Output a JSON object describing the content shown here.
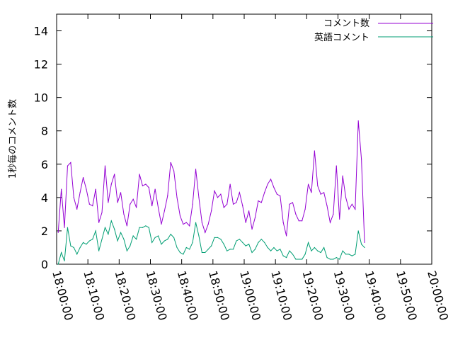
{
  "chart_data": {
    "type": "line",
    "title": "",
    "xlabel": "",
    "ylabel": "1秒毎のコメント数",
    "ylim": [
      0,
      15
    ],
    "yticks": [
      "0",
      "2",
      "4",
      "6",
      "8",
      "10",
      "12",
      "14"
    ],
    "xlim": [
      "18:00:00",
      "20:00:00"
    ],
    "xticks": [
      "18:00:00",
      "18:10:00",
      "18:20:00",
      "18:30:00",
      "18:40:00",
      "18:50:00",
      "19:00:00",
      "19:10:00",
      "19:20:00",
      "19:30:00",
      "19:40:00",
      "19:50:00",
      "20:00:00"
    ],
    "grid": false,
    "legend_position": "top-right",
    "series": [
      {
        "name": "コメント数",
        "color": "#9400d3",
        "points": [
          [
            "18:00:30",
            1.9
          ],
          [
            "18:01:30",
            4.5
          ],
          [
            "18:02:30",
            2.2
          ],
          [
            "18:03:30",
            5.9
          ],
          [
            "18:04:30",
            6.1
          ],
          [
            "18:05:30",
            4.0
          ],
          [
            "18:06:30",
            3.3
          ],
          [
            "18:07:30",
            4.3
          ],
          [
            "18:08:30",
            5.2
          ],
          [
            "18:09:30",
            4.5
          ],
          [
            "18:10:30",
            3.6
          ],
          [
            "18:11:30",
            3.5
          ],
          [
            "18:12:30",
            4.5
          ],
          [
            "18:13:30",
            2.5
          ],
          [
            "18:14:30",
            3.1
          ],
          [
            "18:15:30",
            5.9
          ],
          [
            "18:16:30",
            3.7
          ],
          [
            "18:17:30",
            4.8
          ],
          [
            "18:18:30",
            5.4
          ],
          [
            "18:19:30",
            3.7
          ],
          [
            "18:20:30",
            4.3
          ],
          [
            "18:21:30",
            3.0
          ],
          [
            "18:22:30",
            2.3
          ],
          [
            "18:23:30",
            3.6
          ],
          [
            "18:24:30",
            3.9
          ],
          [
            "18:25:30",
            3.4
          ],
          [
            "18:26:30",
            5.4
          ],
          [
            "18:27:30",
            4.7
          ],
          [
            "18:28:30",
            4.8
          ],
          [
            "18:29:30",
            4.6
          ],
          [
            "18:30:30",
            3.5
          ],
          [
            "18:31:30",
            4.5
          ],
          [
            "18:32:30",
            3.4
          ],
          [
            "18:33:30",
            2.4
          ],
          [
            "18:34:30",
            3.2
          ],
          [
            "18:35:30",
            4.1
          ],
          [
            "18:36:30",
            6.1
          ],
          [
            "18:37:30",
            5.6
          ],
          [
            "18:38:30",
            4.0
          ],
          [
            "18:39:30",
            2.9
          ],
          [
            "18:40:30",
            2.4
          ],
          [
            "18:41:30",
            2.5
          ],
          [
            "18:42:30",
            2.3
          ],
          [
            "18:43:30",
            3.6
          ],
          [
            "18:44:30",
            5.7
          ],
          [
            "18:45:30",
            4.0
          ],
          [
            "18:46:30",
            2.5
          ],
          [
            "18:47:30",
            1.9
          ],
          [
            "18:48:30",
            2.4
          ],
          [
            "18:49:30",
            3.2
          ],
          [
            "18:50:30",
            4.4
          ],
          [
            "18:51:30",
            4.0
          ],
          [
            "18:52:30",
            4.2
          ],
          [
            "18:53:30",
            3.4
          ],
          [
            "18:54:30",
            3.6
          ],
          [
            "18:55:30",
            4.8
          ],
          [
            "18:56:30",
            3.6
          ],
          [
            "18:57:30",
            3.7
          ],
          [
            "18:58:30",
            4.3
          ],
          [
            "18:59:30",
            3.5
          ],
          [
            "19:00:30",
            2.5
          ],
          [
            "19:01:30",
            3.2
          ],
          [
            "19:02:30",
            2.1
          ],
          [
            "19:03:30",
            2.8
          ],
          [
            "19:04:30",
            3.8
          ],
          [
            "19:05:30",
            3.7
          ],
          [
            "19:06:30",
            4.3
          ],
          [
            "19:07:30",
            4.8
          ],
          [
            "19:08:30",
            5.1
          ],
          [
            "19:09:30",
            4.6
          ],
          [
            "19:10:30",
            4.2
          ],
          [
            "19:11:30",
            4.1
          ],
          [
            "19:12:30",
            2.5
          ],
          [
            "19:13:30",
            1.7
          ],
          [
            "19:14:30",
            3.6
          ],
          [
            "19:15:30",
            3.7
          ],
          [
            "19:16:30",
            3.0
          ],
          [
            "19:17:30",
            2.6
          ],
          [
            "19:18:30",
            2.6
          ],
          [
            "19:19:30",
            3.3
          ],
          [
            "19:20:30",
            4.8
          ],
          [
            "19:21:30",
            4.3
          ],
          [
            "19:22:30",
            6.8
          ],
          [
            "19:23:30",
            4.7
          ],
          [
            "19:24:30",
            4.2
          ],
          [
            "19:25:30",
            4.3
          ],
          [
            "19:26:30",
            3.5
          ],
          [
            "19:27:30",
            2.5
          ],
          [
            "19:28:30",
            3.0
          ],
          [
            "19:29:30",
            5.9
          ],
          [
            "19:30:30",
            2.7
          ],
          [
            "19:31:30",
            5.3
          ],
          [
            "19:32:30",
            4.0
          ],
          [
            "19:33:30",
            3.3
          ],
          [
            "19:34:30",
            3.6
          ],
          [
            "19:35:30",
            3.3
          ],
          [
            "19:36:30",
            8.6
          ],
          [
            "19:37:30",
            6.3
          ],
          [
            "19:38:30",
            1.3
          ]
        ]
      },
      {
        "name": "英語コメント",
        "color": "#009e73",
        "points": [
          [
            "18:00:30",
            0.0
          ],
          [
            "18:01:30",
            0.7
          ],
          [
            "18:02:30",
            0.2
          ],
          [
            "18:03:30",
            2.2
          ],
          [
            "18:04:30",
            1.1
          ],
          [
            "18:05:30",
            1.0
          ],
          [
            "18:06:30",
            0.6
          ],
          [
            "18:07:30",
            1.0
          ],
          [
            "18:08:30",
            1.3
          ],
          [
            "18:09:30",
            1.2
          ],
          [
            "18:10:30",
            1.4
          ],
          [
            "18:11:30",
            1.5
          ],
          [
            "18:12:30",
            2.0
          ],
          [
            "18:13:30",
            0.8
          ],
          [
            "18:14:30",
            1.5
          ],
          [
            "18:15:30",
            2.2
          ],
          [
            "18:16:30",
            1.8
          ],
          [
            "18:17:30",
            2.6
          ],
          [
            "18:18:30",
            2.1
          ],
          [
            "18:19:30",
            1.4
          ],
          [
            "18:20:30",
            1.9
          ],
          [
            "18:21:30",
            1.5
          ],
          [
            "18:22:30",
            0.8
          ],
          [
            "18:23:30",
            1.1
          ],
          [
            "18:24:30",
            1.7
          ],
          [
            "18:25:30",
            1.5
          ],
          [
            "18:26:30",
            2.2
          ],
          [
            "18:27:30",
            2.2
          ],
          [
            "18:28:30",
            2.3
          ],
          [
            "18:29:30",
            2.2
          ],
          [
            "18:30:30",
            1.3
          ],
          [
            "18:31:30",
            1.6
          ],
          [
            "18:32:30",
            1.7
          ],
          [
            "18:33:30",
            1.2
          ],
          [
            "18:34:30",
            1.4
          ],
          [
            "18:35:30",
            1.5
          ],
          [
            "18:36:30",
            1.8
          ],
          [
            "18:37:30",
            1.6
          ],
          [
            "18:38:30",
            1.0
          ],
          [
            "18:39:30",
            0.7
          ],
          [
            "18:40:30",
            0.6
          ],
          [
            "18:41:30",
            1.0
          ],
          [
            "18:42:30",
            0.9
          ],
          [
            "18:43:30",
            1.3
          ],
          [
            "18:44:30",
            2.5
          ],
          [
            "18:45:30",
            1.7
          ],
          [
            "18:46:30",
            0.7
          ],
          [
            "18:47:30",
            0.7
          ],
          [
            "18:48:30",
            0.9
          ],
          [
            "18:49:30",
            1.1
          ],
          [
            "18:50:30",
            1.6
          ],
          [
            "18:51:30",
            1.6
          ],
          [
            "18:52:30",
            1.5
          ],
          [
            "18:53:30",
            1.2
          ],
          [
            "18:54:30",
            0.8
          ],
          [
            "18:55:30",
            0.9
          ],
          [
            "18:56:30",
            0.9
          ],
          [
            "18:57:30",
            1.4
          ],
          [
            "18:58:30",
            1.5
          ],
          [
            "18:59:30",
            1.3
          ],
          [
            "19:00:30",
            1.1
          ],
          [
            "19:01:30",
            1.2
          ],
          [
            "19:02:30",
            0.7
          ],
          [
            "19:03:30",
            0.9
          ],
          [
            "19:04:30",
            1.3
          ],
          [
            "19:05:30",
            1.5
          ],
          [
            "19:06:30",
            1.3
          ],
          [
            "19:07:30",
            1.0
          ],
          [
            "19:08:30",
            0.8
          ],
          [
            "19:09:30",
            1.0
          ],
          [
            "19:10:30",
            0.8
          ],
          [
            "19:11:30",
            0.9
          ],
          [
            "19:12:30",
            0.5
          ],
          [
            "19:13:30",
            0.4
          ],
          [
            "19:14:30",
            0.8
          ],
          [
            "19:15:30",
            0.6
          ],
          [
            "19:16:30",
            0.3
          ],
          [
            "19:17:30",
            0.3
          ],
          [
            "19:18:30",
            0.3
          ],
          [
            "19:19:30",
            0.6
          ],
          [
            "19:20:30",
            1.3
          ],
          [
            "19:21:30",
            0.8
          ],
          [
            "19:22:30",
            1.0
          ],
          [
            "19:23:30",
            0.8
          ],
          [
            "19:24:30",
            0.7
          ],
          [
            "19:25:30",
            1.0
          ],
          [
            "19:26:30",
            0.4
          ],
          [
            "19:27:30",
            0.3
          ],
          [
            "19:28:30",
            0.3
          ],
          [
            "19:29:30",
            0.4
          ],
          [
            "19:30:30",
            0.3
          ],
          [
            "19:31:30",
            0.8
          ],
          [
            "19:32:30",
            0.6
          ],
          [
            "19:33:30",
            0.6
          ],
          [
            "19:34:30",
            0.5
          ],
          [
            "19:35:30",
            0.6
          ],
          [
            "19:36:30",
            2.0
          ],
          [
            "19:37:30",
            1.2
          ],
          [
            "19:38:30",
            1.0
          ]
        ]
      }
    ]
  }
}
